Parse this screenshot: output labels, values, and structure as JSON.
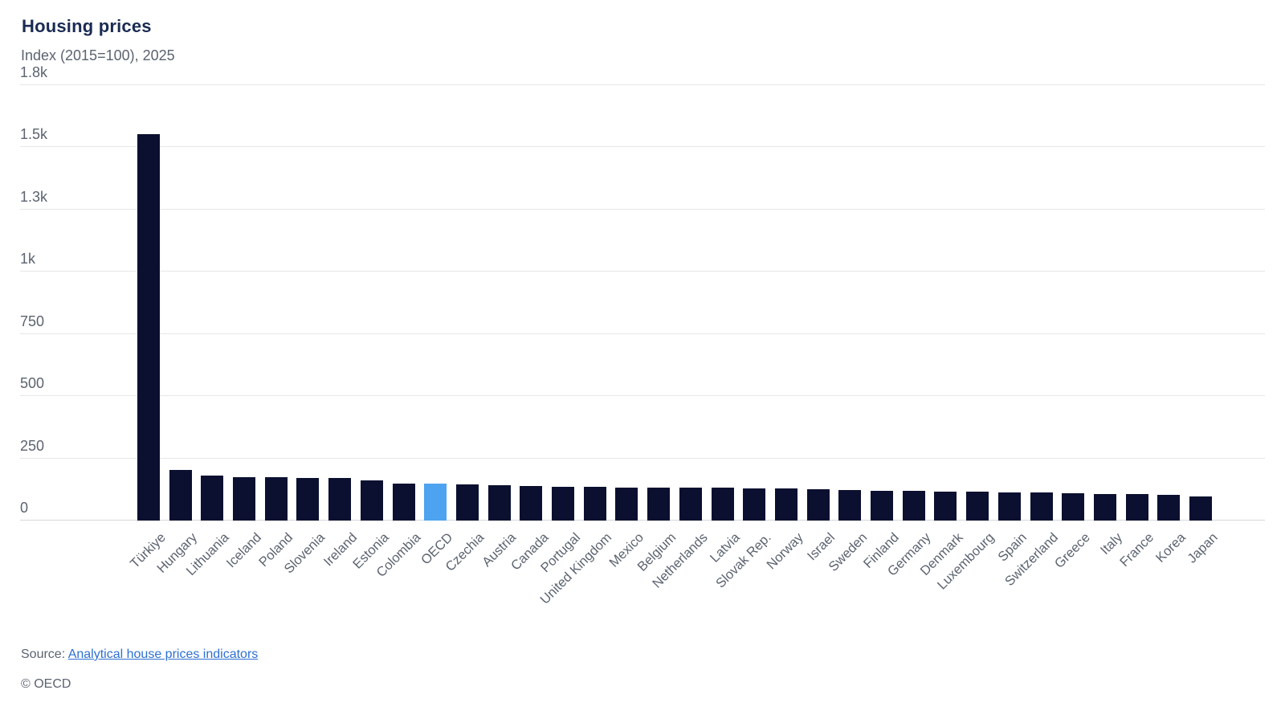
{
  "header": {
    "title": "Housing prices",
    "subtitle": "Index (2015=100), 2025"
  },
  "chart_data": {
    "type": "bar",
    "title": "Housing prices",
    "subtitle": "Index (2015=100), 2025",
    "ylabel": "Index (2015=100)",
    "xlabel": "",
    "year": "2025",
    "grid": true,
    "legend_position": "none",
    "ylim": [
      0,
      1750
    ],
    "y_ticks": [
      {
        "value": 0,
        "label": "0"
      },
      {
        "value": 250,
        "label": "250"
      },
      {
        "value": 500,
        "label": "500"
      },
      {
        "value": 750,
        "label": "750"
      },
      {
        "value": 1000,
        "label": "1k"
      },
      {
        "value": 1250,
        "label": "1.3k"
      },
      {
        "value": 1500,
        "label": "1.5k"
      },
      {
        "value": 1750,
        "label": "1.8k"
      }
    ],
    "categories": [
      "Türkiye",
      "Hungary",
      "Lithuania",
      "Iceland",
      "Poland",
      "Slovenia",
      "Ireland",
      "Estonia",
      "Colombia",
      "OECD",
      "Czechia",
      "Austria",
      "Canada",
      "Portugal",
      "United Kingdom",
      "Mexico",
      "Belgium",
      "Netherlands",
      "Latvia",
      "Slovak Rep.",
      "Norway",
      "Israel",
      "Sweden",
      "Finland",
      "Germany",
      "Denmark",
      "Luxembourg",
      "Spain",
      "Switzerland",
      "Greece",
      "Italy",
      "France",
      "Korea",
      "Japan"
    ],
    "values": [
      1552,
      204,
      181,
      175,
      173,
      172,
      170,
      162,
      148,
      147,
      146,
      142,
      139,
      137,
      136,
      134,
      133,
      131,
      131,
      130,
      128,
      125,
      123,
      120,
      118,
      117,
      115,
      114,
      112,
      109,
      108,
      106,
      104,
      98
    ],
    "highlight_category": "OECD",
    "bar_color": "#0b1030",
    "highlight_color": "#4da3ef"
  },
  "footer": {
    "source_prefix": "Source: ",
    "source_link": "Analytical house prices indicators",
    "copyright": "© OECD"
  }
}
